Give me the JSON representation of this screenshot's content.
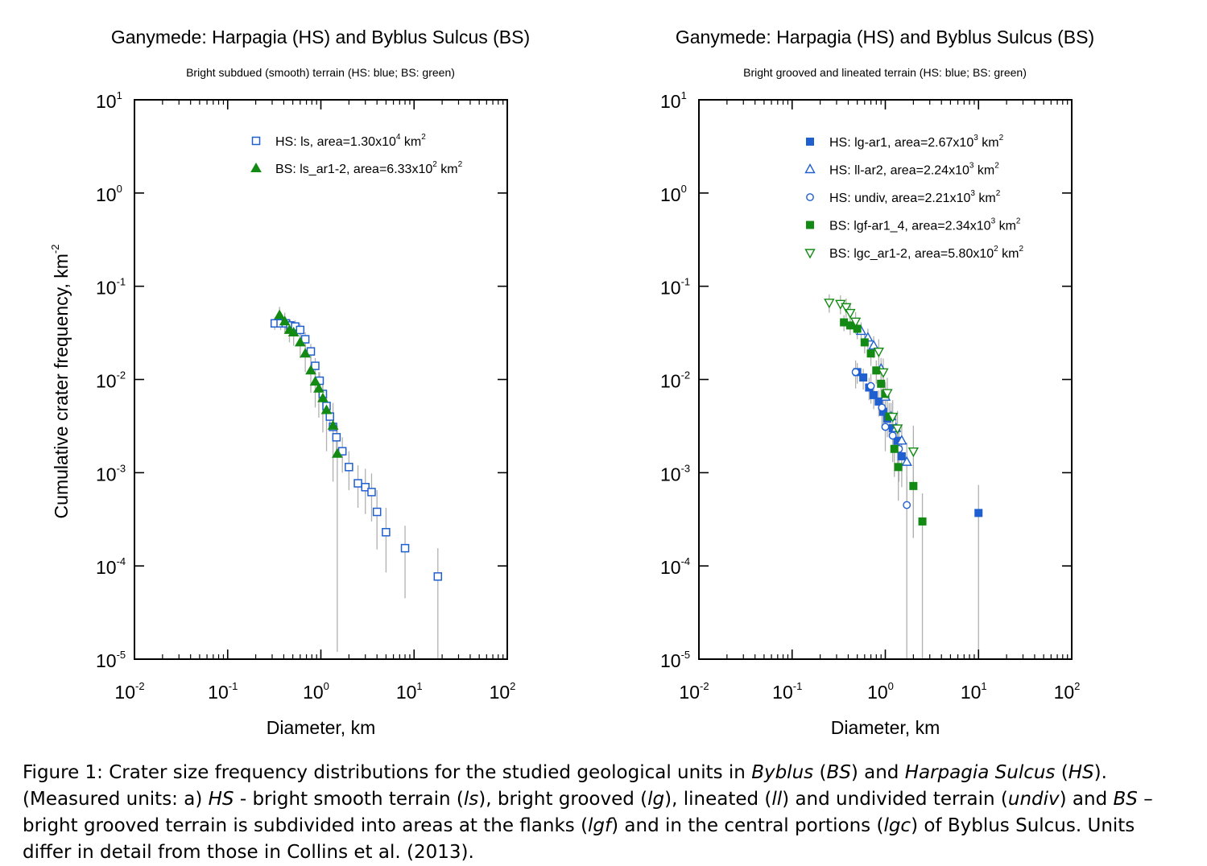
{
  "chart_data": [
    {
      "type": "scatter",
      "title": "Ganymede: Harpagia (HS) and Byblus Sulcus (BS)",
      "subtitle": "Bright subdued (smooth) terrain (HS: blue; BS: green)",
      "xlabel": "Diameter, km",
      "ylabel": "Cumulative crater frequency, km",
      "ylabel_sup": "-2",
      "x_scale": "log",
      "y_scale": "log",
      "xlim": [
        0.01,
        100
      ],
      "ylim": [
        1e-05,
        10
      ],
      "x_ticks": [
        {
          "base": "10",
          "exp": "-2"
        },
        {
          "base": "10",
          "exp": "-1"
        },
        {
          "base": "10",
          "exp": "0"
        },
        {
          "base": "10",
          "exp": "1"
        },
        {
          "base": "10",
          "exp": "2"
        }
      ],
      "y_ticks": [
        {
          "base": "10",
          "exp": "-5"
        },
        {
          "base": "10",
          "exp": "-4"
        },
        {
          "base": "10",
          "exp": "-3"
        },
        {
          "base": "10",
          "exp": "-2"
        },
        {
          "base": "10",
          "exp": "-1"
        },
        {
          "base": "10",
          "exp": "0"
        },
        {
          "base": "10",
          "exp": "1"
        }
      ],
      "legend_position": "top-right",
      "series": [
        {
          "name": "HS: ls, area=1.30x10",
          "name_exp": "4",
          "name_unit": " km",
          "name_unit_exp": "2",
          "color": "#1f5fd0",
          "marker": "square-open",
          "points": [
            {
              "x": 0.32,
              "y": 0.04,
              "lo": 0.034,
              "hi": 0.046
            },
            {
              "x": 0.37,
              "y": 0.04,
              "lo": 0.034,
              "hi": 0.046
            },
            {
              "x": 0.42,
              "y": 0.04,
              "lo": 0.034,
              "hi": 0.046
            },
            {
              "x": 0.47,
              "y": 0.038,
              "lo": 0.032,
              "hi": 0.044
            },
            {
              "x": 0.53,
              "y": 0.037,
              "lo": 0.031,
              "hi": 0.043
            },
            {
              "x": 0.6,
              "y": 0.034,
              "lo": 0.028,
              "hi": 0.04
            },
            {
              "x": 0.68,
              "y": 0.027,
              "lo": 0.022,
              "hi": 0.032
            },
            {
              "x": 0.78,
              "y": 0.02,
              "lo": 0.016,
              "hi": 0.024
            },
            {
              "x": 0.87,
              "y": 0.014,
              "lo": 0.011,
              "hi": 0.017
            },
            {
              "x": 0.97,
              "y": 0.0097,
              "lo": 0.0075,
              "hi": 0.012
            },
            {
              "x": 1.05,
              "y": 0.007,
              "lo": 0.0052,
              "hi": 0.0088
            },
            {
              "x": 1.15,
              "y": 0.0052,
              "lo": 0.0038,
              "hi": 0.0067
            },
            {
              "x": 1.25,
              "y": 0.004,
              "lo": 0.0028,
              "hi": 0.0053
            },
            {
              "x": 1.35,
              "y": 0.0031,
              "lo": 0.0021,
              "hi": 0.0042
            },
            {
              "x": 1.47,
              "y": 0.0024,
              "lo": 0.0015,
              "hi": 0.0033
            },
            {
              "x": 1.7,
              "y": 0.0017,
              "lo": 0.001,
              "hi": 0.0024
            },
            {
              "x": 2.0,
              "y": 0.00115,
              "lo": 0.00065,
              "hi": 0.0017
            },
            {
              "x": 2.5,
              "y": 0.00077,
              "lo": 0.00042,
              "hi": 0.0012
            },
            {
              "x": 3.0,
              "y": 0.0007,
              "lo": 0.00036,
              "hi": 0.0011
            },
            {
              "x": 3.5,
              "y": 0.00062,
              "lo": 0.0003,
              "hi": 0.00098
            },
            {
              "x": 4.0,
              "y": 0.00038,
              "lo": 0.00015,
              "hi": 0.00065
            },
            {
              "x": 5.0,
              "y": 0.00023,
              "lo": 8.5e-05,
              "hi": 0.00042
            },
            {
              "x": 8.0,
              "y": 0.000155,
              "lo": 4.5e-05,
              "hi": 0.00027
            },
            {
              "x": 18.0,
              "y": 7.7e-05,
              "lo": 1e-05,
              "hi": 0.000155
            }
          ]
        },
        {
          "name": "BS: ls_ar1-2, area=6.33x10",
          "name_exp": "2",
          "name_unit": " km",
          "name_unit_exp": "2",
          "color": "#138a13",
          "marker": "triangle-filled",
          "points": [
            {
              "x": 0.36,
              "y": 0.049,
              "lo": 0.038,
              "hi": 0.06
            },
            {
              "x": 0.41,
              "y": 0.042,
              "lo": 0.032,
              "hi": 0.052
            },
            {
              "x": 0.46,
              "y": 0.034,
              "lo": 0.025,
              "hi": 0.043
            },
            {
              "x": 0.51,
              "y": 0.032,
              "lo": 0.023,
              "hi": 0.041
            },
            {
              "x": 0.6,
              "y": 0.025,
              "lo": 0.017,
              "hi": 0.033
            },
            {
              "x": 0.68,
              "y": 0.019,
              "lo": 0.012,
              "hi": 0.026
            },
            {
              "x": 0.78,
              "y": 0.0125,
              "lo": 0.0072,
              "hi": 0.018
            },
            {
              "x": 0.87,
              "y": 0.0095,
              "lo": 0.005,
              "hi": 0.014
            },
            {
              "x": 0.95,
              "y": 0.008,
              "lo": 0.0039,
              "hi": 0.012
            },
            {
              "x": 1.05,
              "y": 0.0063,
              "lo": 0.0027,
              "hi": 0.0099
            },
            {
              "x": 1.15,
              "y": 0.0047,
              "lo": 0.0017,
              "hi": 0.0077
            },
            {
              "x": 1.35,
              "y": 0.0032,
              "lo": 0.0008,
              "hi": 0.0056
            },
            {
              "x": 1.5,
              "y": 0.0016,
              "lo": 1.2e-05,
              "hi": 0.0032
            }
          ]
        }
      ]
    },
    {
      "type": "scatter",
      "title": "Ganymede: Harpagia (HS) and Byblus Sulcus (BS)",
      "subtitle": "Bright grooved and lineated terrain (HS: blue; BS: green)",
      "xlabel": "Diameter, km",
      "x_scale": "log",
      "y_scale": "log",
      "xlim": [
        0.01,
        100
      ],
      "ylim": [
        1e-05,
        10
      ],
      "x_ticks": [
        {
          "base": "10",
          "exp": "-2"
        },
        {
          "base": "10",
          "exp": "-1"
        },
        {
          "base": "10",
          "exp": "0"
        },
        {
          "base": "10",
          "exp": "1"
        },
        {
          "base": "10",
          "exp": "2"
        }
      ],
      "y_ticks": [
        {
          "base": "10",
          "exp": "-5"
        },
        {
          "base": "10",
          "exp": "-4"
        },
        {
          "base": "10",
          "exp": "-3"
        },
        {
          "base": "10",
          "exp": "-2"
        },
        {
          "base": "10",
          "exp": "-1"
        },
        {
          "base": "10",
          "exp": "0"
        },
        {
          "base": "10",
          "exp": "1"
        }
      ],
      "legend_position": "top-right",
      "series": [
        {
          "name": "HS: lg-ar1, area=2.67x10",
          "name_exp": "3",
          "name_unit": " km",
          "name_unit_exp": "2",
          "color": "#1f5fd0",
          "marker": "square-filled",
          "points": [
            {
              "x": 0.5,
              "y": 0.012,
              "lo": 0.009,
              "hi": 0.015
            },
            {
              "x": 0.58,
              "y": 0.0105,
              "lo": 0.0078,
              "hi": 0.013
            },
            {
              "x": 0.67,
              "y": 0.0082,
              "lo": 0.006,
              "hi": 0.0104
            },
            {
              "x": 0.75,
              "y": 0.0068,
              "lo": 0.0048,
              "hi": 0.0088
            },
            {
              "x": 0.85,
              "y": 0.0058,
              "lo": 0.004,
              "hi": 0.0076
            },
            {
              "x": 0.95,
              "y": 0.0045,
              "lo": 0.003,
              "hi": 0.006
            },
            {
              "x": 1.05,
              "y": 0.0038,
              "lo": 0.0024,
              "hi": 0.0052
            },
            {
              "x": 1.2,
              "y": 0.003,
              "lo": 0.0018,
              "hi": 0.0042
            },
            {
              "x": 1.35,
              "y": 0.0022,
              "lo": 0.0012,
              "hi": 0.0032
            },
            {
              "x": 1.5,
              "y": 0.0015,
              "lo": 0.0007,
              "hi": 0.0023
            },
            {
              "x": 10.0,
              "y": 0.00037,
              "lo": 1e-05,
              "hi": 0.00074
            }
          ]
        },
        {
          "name": "HS: ll-ar2, area=2.24x10",
          "name_exp": "3",
          "name_unit": " km",
          "name_unit_exp": "2",
          "color": "#1f5fd0",
          "marker": "triangle-open",
          "points": [
            {
              "x": 0.55,
              "y": 0.033,
              "lo": 0.025,
              "hi": 0.041
            },
            {
              "x": 0.65,
              "y": 0.028,
              "lo": 0.021,
              "hi": 0.035
            },
            {
              "x": 0.75,
              "y": 0.023,
              "lo": 0.017,
              "hi": 0.029
            },
            {
              "x": 0.9,
              "y": 0.013,
              "lo": 0.009,
              "hi": 0.017
            },
            {
              "x": 1.0,
              "y": 0.0065,
              "lo": 0.0042,
              "hi": 0.0088
            },
            {
              "x": 1.15,
              "y": 0.004,
              "lo": 0.0024,
              "hi": 0.0056
            },
            {
              "x": 1.3,
              "y": 0.003,
              "lo": 0.0017,
              "hi": 0.0043
            },
            {
              "x": 1.5,
              "y": 0.0022,
              "lo": 0.0011,
              "hi": 0.0033
            },
            {
              "x": 1.7,
              "y": 0.0013,
              "lo": 0.0005,
              "hi": 0.0021
            }
          ]
        },
        {
          "name": "HS: undiv, area=2.21x10",
          "name_exp": "3",
          "name_unit": " km",
          "name_unit_exp": "2",
          "color": "#1f5fd0",
          "marker": "circle-open",
          "points": [
            {
              "x": 0.48,
              "y": 0.012,
              "lo": 0.008,
              "hi": 0.016
            },
            {
              "x": 0.7,
              "y": 0.0085,
              "lo": 0.0055,
              "hi": 0.0115
            },
            {
              "x": 0.92,
              "y": 0.005,
              "lo": 0.003,
              "hi": 0.007
            },
            {
              "x": 1.0,
              "y": 0.0031,
              "lo": 0.0017,
              "hi": 0.0045
            },
            {
              "x": 1.2,
              "y": 0.0025,
              "lo": 0.0013,
              "hi": 0.0037
            },
            {
              "x": 1.4,
              "y": 0.0018,
              "lo": 0.0008,
              "hi": 0.0028
            },
            {
              "x": 1.7,
              "y": 0.00045,
              "lo": 1e-05,
              "hi": 0.0009
            }
          ]
        },
        {
          "name": "BS: lgf-ar1_4, area=2.34x10",
          "name_exp": "3",
          "name_unit": " km",
          "name_unit_exp": "2",
          "color": "#138a13",
          "marker": "square-filled",
          "points": [
            {
              "x": 0.36,
              "y": 0.041,
              "lo": 0.033,
              "hi": 0.049
            },
            {
              "x": 0.42,
              "y": 0.038,
              "lo": 0.03,
              "hi": 0.046
            },
            {
              "x": 0.5,
              "y": 0.035,
              "lo": 0.027,
              "hi": 0.043
            },
            {
              "x": 0.6,
              "y": 0.025,
              "lo": 0.019,
              "hi": 0.031
            },
            {
              "x": 0.7,
              "y": 0.019,
              "lo": 0.014,
              "hi": 0.024
            },
            {
              "x": 0.8,
              "y": 0.0125,
              "lo": 0.009,
              "hi": 0.016
            },
            {
              "x": 0.9,
              "y": 0.009,
              "lo": 0.0062,
              "hi": 0.0118
            },
            {
              "x": 1.0,
              "y": 0.007,
              "lo": 0.0046,
              "hi": 0.0094
            },
            {
              "x": 1.1,
              "y": 0.004,
              "lo": 0.0024,
              "hi": 0.0056
            },
            {
              "x": 1.25,
              "y": 0.0018,
              "lo": 0.0009,
              "hi": 0.0027
            },
            {
              "x": 1.38,
              "y": 0.00115,
              "lo": 0.0005,
              "hi": 0.0018
            },
            {
              "x": 2.0,
              "y": 0.00072,
              "lo": 0.0002,
              "hi": 0.00124
            },
            {
              "x": 2.5,
              "y": 0.0003,
              "lo": 1e-05,
              "hi": 0.0006
            }
          ]
        },
        {
          "name": "BS: lgc_ar1-2, area=5.80x10",
          "name_exp": "2",
          "name_unit": " km",
          "name_unit_exp": "2",
          "color": "#138a13",
          "marker": "triangle-down-open",
          "points": [
            {
              "x": 0.25,
              "y": 0.067,
              "lo": 0.052,
              "hi": 0.082
            },
            {
              "x": 0.33,
              "y": 0.065,
              "lo": 0.05,
              "hi": 0.08
            },
            {
              "x": 0.38,
              "y": 0.06,
              "lo": 0.046,
              "hi": 0.074
            },
            {
              "x": 0.42,
              "y": 0.052,
              "lo": 0.039,
              "hi": 0.065
            },
            {
              "x": 0.48,
              "y": 0.042,
              "lo": 0.031,
              "hi": 0.053
            },
            {
              "x": 0.85,
              "y": 0.02,
              "lo": 0.013,
              "hi": 0.027
            },
            {
              "x": 0.95,
              "y": 0.012,
              "lo": 0.0072,
              "hi": 0.0168
            },
            {
              "x": 1.05,
              "y": 0.0072,
              "lo": 0.004,
              "hi": 0.0104
            },
            {
              "x": 1.2,
              "y": 0.004,
              "lo": 0.002,
              "hi": 0.006
            },
            {
              "x": 1.35,
              "y": 0.003,
              "lo": 0.0014,
              "hi": 0.0046
            },
            {
              "x": 2.0,
              "y": 0.0017,
              "lo": 0.0002,
              "hi": 0.0032
            }
          ]
        }
      ]
    }
  ],
  "caption": {
    "lines": [
      [
        {
          "t": "Figure 1: Crater size frequency distributions for the studied geological units in "
        },
        {
          "t": "Byblus",
          "i": true
        },
        {
          "t": " ("
        },
        {
          "t": "BS",
          "i": true
        },
        {
          "t": ") and "
        },
        {
          "t": "Harpagia Sulcus",
          "i": true
        },
        {
          "t": " ("
        },
        {
          "t": "HS",
          "i": true
        },
        {
          "t": ")."
        }
      ],
      [
        {
          "t": "(Measured units: a) "
        },
        {
          "t": "HS",
          "i": true
        },
        {
          "t": " - bright smooth terrain ("
        },
        {
          "t": "ls",
          "i": true
        },
        {
          "t": "), bright grooved ("
        },
        {
          "t": "lg",
          "i": true
        },
        {
          "t": "), lineated ("
        },
        {
          "t": "ll",
          "i": true
        },
        {
          "t": ") and undivided terrain ("
        },
        {
          "t": "undiv",
          "i": true
        },
        {
          "t": ") and "
        },
        {
          "t": "BS",
          "i": true
        },
        {
          "t": " –"
        }
      ],
      [
        {
          "t": "bright grooved terrain is subdivided into areas at the flanks ("
        },
        {
          "t": "lgf",
          "i": true
        },
        {
          "t": ") and in the central portions ("
        },
        {
          "t": "lgc",
          "i": true
        },
        {
          "t": ") of Byblus Sulcus. Units"
        }
      ],
      [
        {
          "t": "differ in detail from those in Collins et al. (2013)."
        }
      ]
    ]
  }
}
